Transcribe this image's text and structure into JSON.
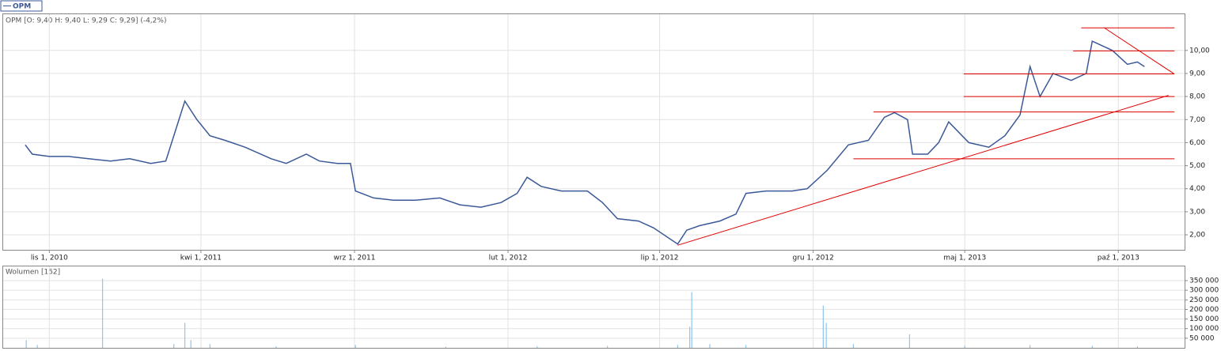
{
  "chart_data": [
    {
      "type": "line",
      "title": "OPM [O: 9,40  H: 9,40  L: 9,29  C: 9,29] (-4,2%)",
      "x": [
        "2010-10-08",
        "2010-10-15",
        "2010-11-01",
        "2010-11-20",
        "2010-12-10",
        "2011-01-01",
        "2011-01-20",
        "2011-02-10",
        "2011-02-25",
        "2011-03-08",
        "2011-03-16",
        "2011-03-28",
        "2011-04-10",
        "2011-04-25",
        "2011-05-15",
        "2011-06-10",
        "2011-06-25",
        "2011-07-15",
        "2011-07-28",
        "2011-08-15",
        "2011-08-28",
        "2011-09-02",
        "2011-09-20",
        "2011-10-10",
        "2011-11-01",
        "2011-11-25",
        "2011-12-15",
        "2012-01-05",
        "2012-01-25",
        "2012-02-10",
        "2012-02-20",
        "2012-03-05",
        "2012-03-25",
        "2012-04-20",
        "2012-05-05",
        "2012-05-20",
        "2012-06-10",
        "2012-06-25",
        "2012-07-19",
        "2012-07-28",
        "2012-08-10",
        "2012-08-30",
        "2012-09-15",
        "2012-09-25",
        "2012-10-15",
        "2012-11-10",
        "2012-11-25",
        "2012-12-15",
        "2013-01-05",
        "2013-01-25",
        "2013-02-10",
        "2013-02-20",
        "2013-03-05",
        "2013-03-10",
        "2013-03-25",
        "2013-04-05",
        "2013-04-15",
        "2013-05-05",
        "2013-05-25",
        "2013-06-10",
        "2013-06-25",
        "2013-07-05",
        "2013-07-15",
        "2013-07-28",
        "2013-08-15",
        "2013-08-30",
        "2013-09-05",
        "2013-09-15",
        "2013-09-25",
        "2013-10-10",
        "2013-10-20",
        "2013-10-27"
      ],
      "series": [
        {
          "name": "OPM",
          "color": "#3b5998",
          "values": [
            5.9,
            5.5,
            5.4,
            5.4,
            5.3,
            5.2,
            5.3,
            5.1,
            5.2,
            6.7,
            7.8,
            7.0,
            6.3,
            6.1,
            5.8,
            5.3,
            5.1,
            5.5,
            5.2,
            5.1,
            5.1,
            3.9,
            3.6,
            3.5,
            3.5,
            3.6,
            3.3,
            3.2,
            3.4,
            3.8,
            4.5,
            4.1,
            3.9,
            3.9,
            3.4,
            2.7,
            2.6,
            2.3,
            1.6,
            2.2,
            2.4,
            2.6,
            2.9,
            3.8,
            3.9,
            3.9,
            4.0,
            4.8,
            5.9,
            6.1,
            7.1,
            7.3,
            7.0,
            5.5,
            5.5,
            6.0,
            6.9,
            6.0,
            5.8,
            6.3,
            7.2,
            9.3,
            8.0,
            9.0,
            8.7,
            9.0,
            10.4,
            10.2,
            10.0,
            9.4,
            9.5,
            9.3
          ]
        }
      ],
      "xlim": [
        "2010-09-16",
        "2013-12-06"
      ],
      "xticks": [
        {
          "value": "2010-11-01",
          "label": "lis 1, 2010"
        },
        {
          "value": "2011-04-01",
          "label": "kwi 1, 2011"
        },
        {
          "value": "2011-09-01",
          "label": "wrz 1, 2011"
        },
        {
          "value": "2012-02-01",
          "label": "lut 1, 2012"
        },
        {
          "value": "2012-07-01",
          "label": "lip 1, 2012"
        },
        {
          "value": "2012-12-01",
          "label": "gru 1, 2012"
        },
        {
          "value": "2013-05-01",
          "label": "maj 1, 2013"
        },
        {
          "value": "2013-10-01",
          "label": "paź 1, 2013"
        }
      ],
      "ylim": [
        1.35,
        11.57
      ],
      "yticks": [
        {
          "value": 2,
          "label": "2,00"
        },
        {
          "value": 3,
          "label": "3,00"
        },
        {
          "value": 4,
          "label": "4,00"
        },
        {
          "value": 5,
          "label": "5,00"
        },
        {
          "value": 6,
          "label": "6,00"
        },
        {
          "value": 7,
          "label": "7,00"
        },
        {
          "value": 8,
          "label": "8,00"
        },
        {
          "value": 9,
          "label": "9,00"
        },
        {
          "value": 10,
          "label": "10,00"
        }
      ],
      "grid": true,
      "trendline_color": "#e00000",
      "trendlines": [
        {
          "x": [
            "2012-07-19",
            "2013-11-20"
          ],
          "values": [
            1.55,
            8.05
          ]
        },
        {
          "x": [
            "2013-09-17",
            "2013-11-25"
          ],
          "values": [
            10.98,
            9.0
          ]
        },
        {
          "x": [
            "2013-01-10",
            "2013-11-26"
          ],
          "values": [
            5.3,
            5.3
          ]
        },
        {
          "x": [
            "2013-01-30",
            "2013-11-26"
          ],
          "values": [
            7.33,
            7.33
          ]
        },
        {
          "x": [
            "2013-04-30",
            "2013-11-26"
          ],
          "values": [
            8.0,
            8.0
          ]
        },
        {
          "x": [
            "2013-04-30",
            "2013-11-26"
          ],
          "values": [
            8.98,
            8.98
          ]
        },
        {
          "x": [
            "2013-08-17",
            "2013-11-26"
          ],
          "values": [
            9.98,
            9.98
          ]
        },
        {
          "x": [
            "2013-08-25",
            "2013-11-26"
          ],
          "values": [
            10.98,
            10.98
          ]
        }
      ]
    },
    {
      "type": "bar",
      "title": "Wolumen [152]",
      "x": [
        "2010-10-09",
        "2010-10-20",
        "2010-12-24",
        "2011-03-05",
        "2011-03-16",
        "2011-03-22",
        "2011-04-10",
        "2011-06-15",
        "2011-09-02",
        "2011-12-01",
        "2012-03-01",
        "2012-05-10",
        "2012-07-19",
        "2012-07-31",
        "2012-08-02",
        "2012-08-20",
        "2012-09-25",
        "2012-12-11",
        "2012-12-14",
        "2013-01-10",
        "2013-03-07",
        "2013-05-01",
        "2013-07-05",
        "2013-09-05",
        "2013-10-20"
      ],
      "values": [
        40000,
        15000,
        360000,
        20000,
        130000,
        40000,
        20000,
        8000,
        15000,
        5000,
        8000,
        10000,
        15000,
        110000,
        290000,
        20000,
        15000,
        220000,
        130000,
        20000,
        70000,
        10000,
        15000,
        10000,
        8000
      ],
      "color": "#8ec6ee",
      "xlim": [
        "2010-09-16",
        "2013-12-06"
      ],
      "ylim": [
        0,
        424000
      ],
      "yticks": [
        {
          "value": 50000,
          "label": "50 000"
        },
        {
          "value": 100000,
          "label": "100 000"
        },
        {
          "value": 150000,
          "label": "150 000"
        },
        {
          "value": 200000,
          "label": "200 000"
        },
        {
          "value": 250000,
          "label": "250 000"
        },
        {
          "value": 300000,
          "label": "300 000"
        },
        {
          "value": 350000,
          "label": "350 000"
        }
      ],
      "grid": true
    }
  ]
}
